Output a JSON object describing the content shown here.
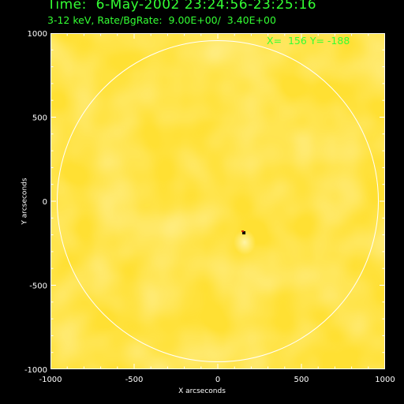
{
  "header": {
    "title": "Time:  6-May-2002 23:24:56-23:25:16",
    "subtitle": "3-12 keV, Rate/BgRate:  9.00E+00/  3.40E+00",
    "cursor_readout": "X=  156 Y= -188"
  },
  "chart_data": {
    "type": "heatmap",
    "title": "Time:  6-May-2002 23:24:56-23:25:16",
    "xlabel": "X arcseconds",
    "ylabel": "Y arcseconds",
    "xlim": [
      -1000,
      1000
    ],
    "ylim": [
      -1000,
      1000
    ],
    "x_ticks": [
      "-1000",
      "-500",
      "0",
      "500",
      "1000"
    ],
    "y_ticks": [
      "1000",
      "500",
      "0",
      "-500",
      "-1000"
    ],
    "source": {
      "x": 156,
      "y": -188
    },
    "solar_limb_radius_arcsec": 960,
    "colors": {
      "background_map": "#ffe033",
      "limb": "#ffffff",
      "text": "#33ff33",
      "axes": "#ffffff",
      "source_dark": "#000000",
      "source_red": "#cc2200"
    }
  }
}
